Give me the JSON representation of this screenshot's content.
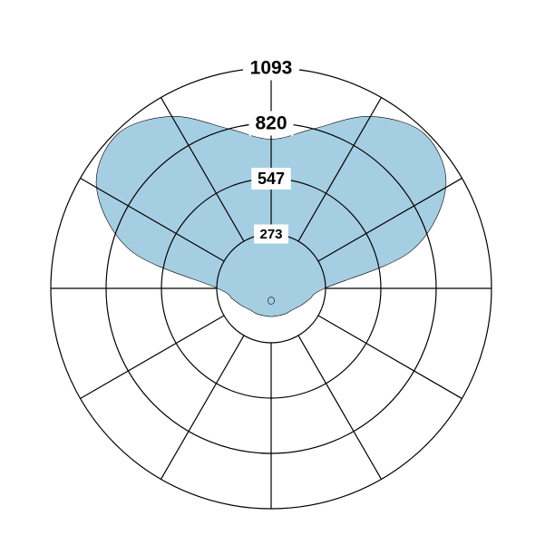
{
  "chart_data": {
    "type": "polar-area",
    "title": "",
    "radial_axis": {
      "range": [
        0,
        1093
      ],
      "ticks": [
        273,
        547,
        820,
        1093
      ],
      "tick_labels": [
        "273",
        "547",
        "820",
        "1093"
      ]
    },
    "angular_axis": {
      "divisions": 12,
      "step_degrees": 30,
      "zero_direction": "up",
      "tick_labels": []
    },
    "grid": true,
    "legend": "none",
    "series": [
      {
        "fill_color": "#a6cee3",
        "stroke_color": "#000000",
        "angle_deg": [
          0,
          15,
          30,
          45,
          60,
          75,
          90,
          105,
          120,
          135,
          150,
          165,
          180,
          195,
          210,
          225,
          240,
          255,
          270,
          285,
          300,
          315,
          330,
          345
        ],
        "values": [
          740,
          820,
          985,
          1080,
          1000,
          720,
          265,
          200,
          170,
          150,
          145,
          140,
          140,
          140,
          145,
          150,
          170,
          200,
          265,
          720,
          1000,
          1080,
          985,
          820
        ]
      }
    ],
    "offset_lobe": {
      "direction_deg": 180,
      "center_value": 61,
      "radius_value": 67,
      "fill_color": "#a6cee3"
    }
  }
}
